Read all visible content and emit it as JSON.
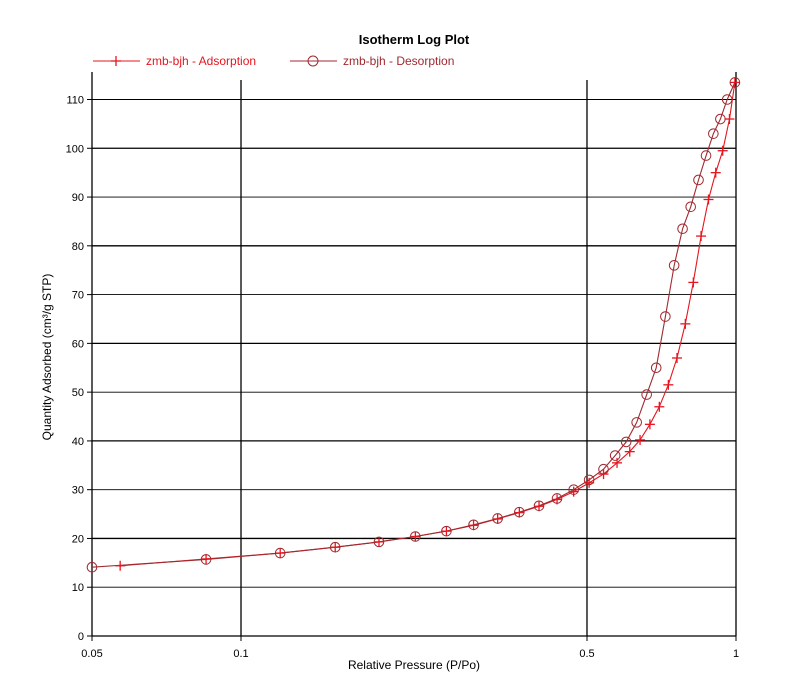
{
  "chart_data": {
    "type": "line",
    "title": "Isotherm Log Plot",
    "xlabel": "Relative Pressure (P/Po)",
    "ylabel": "Quantity Adsorbed (cm³/g STP)",
    "x_scale": "log",
    "xlim": [
      0.05,
      1.0
    ],
    "ylim": [
      0,
      114
    ],
    "x_ticks": [
      0.05,
      0.1,
      0.5,
      1
    ],
    "x_tick_labels": [
      "0.05",
      "0.1",
      "0.5",
      "1"
    ],
    "y_ticks": [
      0,
      10,
      20,
      30,
      40,
      50,
      60,
      70,
      80,
      90,
      100,
      110
    ],
    "y_tick_labels": [
      "0",
      "10",
      "20",
      "30",
      "40",
      "50",
      "60",
      "70",
      "80",
      "90",
      "100",
      "110"
    ],
    "grid": true,
    "legend_position": "top-left",
    "series": [
      {
        "name": "zmb-bjh - Adsorption",
        "marker": "plus",
        "color": "#e8141e",
        "x": [
          0.057,
          0.085,
          0.12,
          0.155,
          0.19,
          0.225,
          0.26,
          0.295,
          0.33,
          0.365,
          0.4,
          0.435,
          0.47,
          0.505,
          0.54,
          0.575,
          0.61,
          0.64,
          0.67,
          0.7,
          0.73,
          0.76,
          0.79,
          0.82,
          0.85,
          0.88,
          0.91,
          0.94,
          0.97,
          0.995
        ],
        "y": [
          14.4,
          15.8,
          17.0,
          18.2,
          19.3,
          20.4,
          21.5,
          22.7,
          24.0,
          25.3,
          26.6,
          28.0,
          29.6,
          31.4,
          33.2,
          35.5,
          37.8,
          40.2,
          43.4,
          47.0,
          51.5,
          57.0,
          64.0,
          72.5,
          82.0,
          89.5,
          95.0,
          99.5,
          106.0,
          113.5
        ]
      },
      {
        "name": "zmb-bjh - Desorption",
        "marker": "circle",
        "color": "#a02a30",
        "x": [
          0.05,
          0.085,
          0.12,
          0.155,
          0.19,
          0.225,
          0.26,
          0.295,
          0.33,
          0.365,
          0.4,
          0.435,
          0.47,
          0.505,
          0.54,
          0.57,
          0.6,
          0.63,
          0.66,
          0.69,
          0.72,
          0.75,
          0.78,
          0.81,
          0.84,
          0.87,
          0.9,
          0.93,
          0.96,
          0.995
        ],
        "y": [
          14.1,
          15.7,
          17.0,
          18.2,
          19.3,
          20.4,
          21.5,
          22.8,
          24.1,
          25.4,
          26.7,
          28.2,
          30.0,
          32.0,
          34.2,
          37.0,
          39.8,
          43.8,
          49.5,
          55.0,
          65.5,
          76.0,
          83.5,
          88.0,
          93.5,
          98.5,
          103.0,
          106.0,
          110.0,
          113.5
        ]
      }
    ]
  }
}
